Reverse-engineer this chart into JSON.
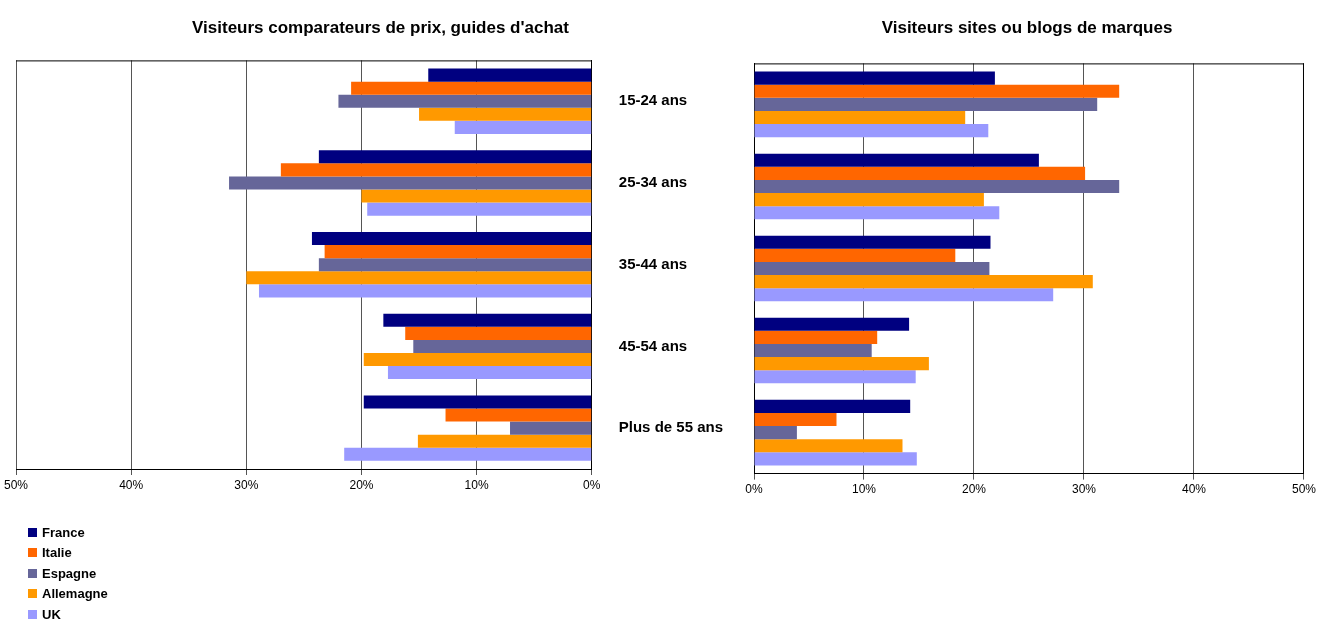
{
  "chart_data": [
    {
      "type": "bar",
      "orientation": "horizontal",
      "title": "Visiteurs comparateurs de prix, guides d'achat",
      "categories": [
        "15-24 ans",
        "25-34 ans",
        "35-44 ans",
        "45-54 ans",
        "Plus de 55 ans"
      ],
      "series": [
        {
          "name": "France",
          "color": "#000080",
          "values": [
            14.2,
            23.7,
            24.3,
            18.1,
            19.8
          ]
        },
        {
          "name": "Italie",
          "color": "#ff6600",
          "values": [
            20.9,
            27.0,
            23.2,
            16.2,
            12.7
          ]
        },
        {
          "name": "Espagne",
          "color": "#666699",
          "values": [
            22.0,
            31.5,
            23.7,
            15.5,
            7.1
          ]
        },
        {
          "name": "Allemagne",
          "color": "#ff9900",
          "values": [
            15.0,
            20.0,
            30.0,
            19.8,
            15.1
          ]
        },
        {
          "name": "UK",
          "color": "#9999ff",
          "values": [
            11.9,
            19.5,
            28.9,
            17.7,
            21.5
          ]
        }
      ],
      "xlim": [
        50,
        0
      ],
      "xticks": [
        {
          "value": 50,
          "label": "50%"
        },
        {
          "value": 40,
          "label": "40%"
        },
        {
          "value": 30,
          "label": "30%"
        },
        {
          "value": 20,
          "label": "20%"
        },
        {
          "value": 10,
          "label": "10%"
        },
        {
          "value": 0,
          "label": "0%"
        }
      ],
      "grid": "x",
      "legend": "bottom left"
    },
    {
      "type": "bar",
      "orientation": "horizontal",
      "title": "Visiteurs sites ou blogs de marques",
      "categories": [
        null,
        null,
        null,
        null,
        null
      ],
      "series": [
        {
          "color": "#000080",
          "values": [
            21.9,
            25.9,
            21.5,
            14.1,
            14.2
          ]
        },
        {
          "color": "#ff6600",
          "values": [
            33.2,
            30.1,
            18.3,
            11.2,
            7.5
          ]
        },
        {
          "color": "#666699",
          "values": [
            31.2,
            33.2,
            21.4,
            10.7,
            3.9
          ]
        },
        {
          "color": "#ff9900",
          "values": [
            19.2,
            20.9,
            30.8,
            15.9,
            13.5
          ]
        },
        {
          "color": "#9999ff",
          "values": [
            21.3,
            22.3,
            27.2,
            14.7,
            14.8
          ]
        }
      ],
      "xlim": [
        0,
        50
      ],
      "xticks": [
        {
          "value": 0,
          "label": "0%"
        },
        {
          "value": 10,
          "label": "10%"
        },
        {
          "value": 20,
          "label": "20%"
        },
        {
          "value": 30,
          "label": "30%"
        },
        {
          "value": 40,
          "label": "40%"
        },
        {
          "value": 50,
          "label": "50%"
        }
      ],
      "grid": "x",
      "tick_labels": "x",
      "legend": false
    }
  ]
}
